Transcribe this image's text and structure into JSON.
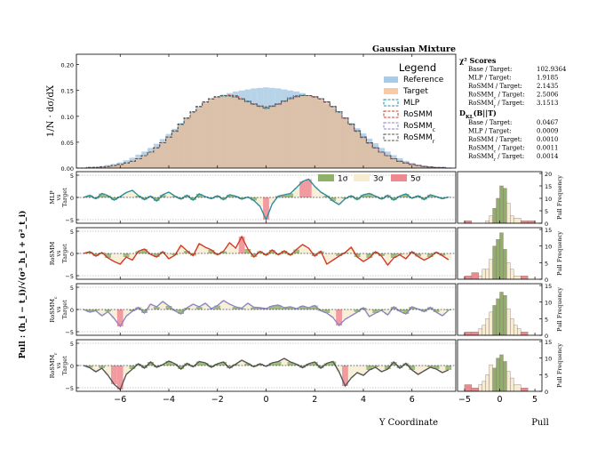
{
  "chart_data": {
    "type": "bar",
    "title": "Gaussian Mixture",
    "xlabel": "Y Coordinate",
    "ylabel_main": "1/N · dσ/dX",
    "pull_ylabel": "Pull : (h_i − t_i)/√(σ²_h_i + σ²_t_i)",
    "pull_hist_xlabel": "Pull",
    "pull_hist_ylabel": "Pull Frequency",
    "xlim": [
      -7.8,
      7.8
    ],
    "ylim_main": [
      0,
      0.22
    ],
    "x_ticks": [
      "−6",
      "−4",
      "−2",
      "0",
      "2",
      "4",
      "6"
    ],
    "y_ticks_main": [
      "0.00",
      "0.05",
      "0.10",
      "0.15",
      "0.20"
    ],
    "y_ticks_pull": [
      "−5",
      "0",
      "5"
    ],
    "pull_hist_xticks": [
      "−5",
      "0",
      "5"
    ],
    "legend": {
      "title": "Legend",
      "entries": [
        {
          "label": "Reference",
          "style": "filled",
          "color": "#aacbe3"
        },
        {
          "label": "Target",
          "style": "filled",
          "color": "#f7c9a6"
        },
        {
          "label": "MLP",
          "style": "dashed",
          "color": "#2a8fa0"
        },
        {
          "label": "RoSMM",
          "style": "dashed",
          "color": "#d23a2a"
        },
        {
          "label": "RoSMM",
          "sub": "c",
          "style": "dashed",
          "color": "#8e86c4"
        },
        {
          "label": "RoSMM",
          "sub": "r",
          "style": "dashed",
          "color": "#555555"
        }
      ]
    },
    "sigma_legend": [
      "1σ",
      "3σ",
      "5σ"
    ],
    "bands": {
      "one": "#8fb069",
      "three": "#f6ecd0",
      "five": "#ee8a8f"
    },
    "x_centers": [
      -7.5,
      -7.25,
      -7.0,
      -6.75,
      -6.5,
      -6.25,
      -6.0,
      -5.75,
      -5.5,
      -5.25,
      -5.0,
      -4.75,
      -4.5,
      -4.25,
      -4.0,
      -3.75,
      -3.5,
      -3.25,
      -3.0,
      -2.75,
      -2.5,
      -2.25,
      -2.0,
      -1.75,
      -1.5,
      -1.25,
      -1.0,
      -0.75,
      -0.5,
      -0.25,
      0.0,
      0.25,
      0.5,
      0.75,
      1.0,
      1.25,
      1.5,
      1.75,
      2.0,
      2.25,
      2.5,
      2.75,
      3.0,
      3.25,
      3.5,
      3.75,
      4.0,
      4.25,
      4.5,
      4.75,
      5.0,
      5.25,
      5.5,
      5.75,
      6.0,
      6.25,
      6.5,
      6.75,
      7.0,
      7.25,
      7.5
    ],
    "series": [
      {
        "name": "Reference",
        "values": [
          0.001,
          0.002,
          0.003,
          0.004,
          0.006,
          0.008,
          0.011,
          0.015,
          0.02,
          0.026,
          0.032,
          0.039,
          0.047,
          0.056,
          0.066,
          0.076,
          0.087,
          0.097,
          0.107,
          0.116,
          0.125,
          0.131,
          0.137,
          0.142,
          0.145,
          0.148,
          0.15,
          0.152,
          0.154,
          0.155,
          0.156,
          0.155,
          0.154,
          0.152,
          0.15,
          0.148,
          0.145,
          0.141,
          0.137,
          0.131,
          0.124,
          0.116,
          0.107,
          0.097,
          0.087,
          0.077,
          0.067,
          0.057,
          0.048,
          0.039,
          0.032,
          0.025,
          0.019,
          0.014,
          0.01,
          0.007,
          0.005,
          0.003,
          0.002,
          0.001,
          0.001
        ]
      },
      {
        "name": "Target",
        "values": [
          0.0,
          0.001,
          0.001,
          0.002,
          0.003,
          0.005,
          0.007,
          0.01,
          0.013,
          0.018,
          0.024,
          0.031,
          0.039,
          0.049,
          0.06,
          0.072,
          0.085,
          0.097,
          0.109,
          0.119,
          0.128,
          0.134,
          0.138,
          0.14,
          0.14,
          0.138,
          0.134,
          0.129,
          0.124,
          0.12,
          0.118,
          0.12,
          0.124,
          0.129,
          0.134,
          0.138,
          0.14,
          0.14,
          0.138,
          0.134,
          0.128,
          0.119,
          0.109,
          0.097,
          0.085,
          0.072,
          0.06,
          0.049,
          0.039,
          0.031,
          0.024,
          0.018,
          0.013,
          0.01,
          0.007,
          0.005,
          0.003,
          0.002,
          0.001,
          0.001,
          0.0
        ]
      },
      {
        "name": "MLP",
        "values": [
          0.0,
          0.001,
          0.001,
          0.002,
          0.003,
          0.005,
          0.007,
          0.01,
          0.013,
          0.018,
          0.024,
          0.031,
          0.039,
          0.049,
          0.06,
          0.071,
          0.084,
          0.096,
          0.108,
          0.118,
          0.127,
          0.133,
          0.137,
          0.139,
          0.139,
          0.137,
          0.133,
          0.128,
          0.123,
          0.119,
          0.115,
          0.119,
          0.123,
          0.13,
          0.136,
          0.14,
          0.141,
          0.14,
          0.137,
          0.133,
          0.127,
          0.118,
          0.108,
          0.096,
          0.084,
          0.071,
          0.059,
          0.048,
          0.039,
          0.031,
          0.024,
          0.018,
          0.013,
          0.01,
          0.007,
          0.005,
          0.003,
          0.002,
          0.001,
          0.001,
          0.0
        ]
      },
      {
        "name": "RoSMM",
        "values": [
          0.0,
          0.001,
          0.001,
          0.002,
          0.003,
          0.005,
          0.007,
          0.01,
          0.013,
          0.018,
          0.024,
          0.031,
          0.039,
          0.049,
          0.06,
          0.072,
          0.085,
          0.097,
          0.109,
          0.119,
          0.128,
          0.134,
          0.138,
          0.14,
          0.141,
          0.14,
          0.134,
          0.129,
          0.124,
          0.12,
          0.116,
          0.12,
          0.124,
          0.129,
          0.134,
          0.138,
          0.14,
          0.14,
          0.138,
          0.134,
          0.128,
          0.119,
          0.109,
          0.097,
          0.085,
          0.072,
          0.06,
          0.049,
          0.039,
          0.031,
          0.024,
          0.018,
          0.013,
          0.01,
          0.007,
          0.005,
          0.003,
          0.002,
          0.001,
          0.001,
          0.0
        ]
      },
      {
        "name": "RoSMMc",
        "values": [
          0.0,
          0.001,
          0.001,
          0.002,
          0.003,
          0.005,
          0.007,
          0.01,
          0.013,
          0.018,
          0.024,
          0.031,
          0.039,
          0.049,
          0.06,
          0.072,
          0.085,
          0.097,
          0.109,
          0.119,
          0.128,
          0.134,
          0.138,
          0.14,
          0.14,
          0.138,
          0.134,
          0.129,
          0.124,
          0.12,
          0.117,
          0.12,
          0.124,
          0.129,
          0.134,
          0.138,
          0.14,
          0.14,
          0.138,
          0.134,
          0.128,
          0.119,
          0.109,
          0.097,
          0.085,
          0.072,
          0.06,
          0.049,
          0.039,
          0.031,
          0.024,
          0.018,
          0.013,
          0.01,
          0.007,
          0.005,
          0.003,
          0.002,
          0.001,
          0.001,
          0.0
        ]
      },
      {
        "name": "RoSMMr",
        "values": [
          0.0,
          0.001,
          0.001,
          0.002,
          0.003,
          0.005,
          0.007,
          0.01,
          0.013,
          0.018,
          0.024,
          0.031,
          0.039,
          0.049,
          0.06,
          0.072,
          0.085,
          0.097,
          0.109,
          0.119,
          0.128,
          0.134,
          0.138,
          0.14,
          0.14,
          0.138,
          0.134,
          0.129,
          0.124,
          0.12,
          0.118,
          0.12,
          0.124,
          0.129,
          0.134,
          0.138,
          0.14,
          0.14,
          0.138,
          0.134,
          0.128,
          0.119,
          0.109,
          0.097,
          0.085,
          0.072,
          0.06,
          0.049,
          0.039,
          0.031,
          0.024,
          0.018,
          0.013,
          0.01,
          0.007,
          0.005,
          0.003,
          0.002,
          0.001,
          0.001,
          0.0
        ]
      }
    ],
    "pull_panels": [
      {
        "model": "MLP",
        "label_lines": [
          "MLP",
          "vs",
          "Target"
        ],
        "label_sub": "",
        "color": "#2a8fa0",
        "pulls": [
          0.0,
          0.5,
          -0.3,
          0.9,
          0.4,
          -0.6,
          0.2,
          1.1,
          1.6,
          0.4,
          -0.5,
          0.3,
          -0.8,
          0.6,
          1.2,
          0.3,
          -0.4,
          0.5,
          -0.6,
          0.8,
          0.2,
          -0.3,
          0.4,
          -0.5,
          0.6,
          0.3,
          -0.4,
          0.1,
          -0.7,
          -2.0,
          -5.0,
          -1.5,
          0.3,
          0.6,
          0.9,
          2.2,
          3.6,
          4.1,
          2.5,
          1.2,
          0.4,
          -0.8,
          -1.6,
          -0.3,
          0.4,
          -0.5,
          0.6,
          0.9,
          0.3,
          -0.4,
          0.5,
          -0.6,
          0.3,
          0.8,
          -0.2,
          0.4,
          -0.5,
          0.6,
          0.2,
          -0.3,
          0.1
        ],
        "hist": {
          "bins": [
            -5,
            -4,
            -3,
            -2,
            -1.5,
            -1,
            -0.5,
            0,
            0.5,
            1,
            1.5,
            2,
            3,
            4
          ],
          "counts": [
            1,
            0,
            0,
            1,
            3,
            6,
            10,
            15,
            14,
            8,
            3,
            2,
            1,
            1
          ]
        }
      },
      {
        "model": "RoSMM",
        "label_lines": [
          "RoSMM",
          "vs",
          "Target"
        ],
        "label_sub": "",
        "color": "#d23a2a",
        "pulls": [
          0.0,
          0.4,
          -0.6,
          0.2,
          -1.0,
          -1.8,
          -2.4,
          -0.8,
          -1.5,
          0.5,
          1.0,
          -0.2,
          -0.8,
          0.4,
          -1.2,
          -0.4,
          1.8,
          0.6,
          -0.5,
          2.2,
          1.4,
          0.8,
          -0.3,
          0.5,
          2.4,
          1.2,
          3.8,
          1.0,
          -0.8,
          0.5,
          -0.4,
          0.8,
          -0.3,
          0.6,
          -0.4,
          0.9,
          2.0,
          1.2,
          -0.6,
          0.5,
          -2.4,
          -1.5,
          -0.6,
          0.2,
          1.4,
          -0.8,
          -1.8,
          -1.0,
          0.4,
          -0.6,
          -2.6,
          -1.0,
          -0.3,
          -1.2,
          0.4,
          -0.7,
          -1.5,
          -0.8,
          0.3,
          -0.5,
          -1.4
        ],
        "hist": {
          "bins": [
            -5,
            -4,
            -3,
            -2.5,
            -2,
            -1.5,
            -1,
            -0.5,
            0,
            0.5,
            1,
            1.5,
            2,
            3
          ],
          "counts": [
            1,
            2,
            1,
            3,
            3,
            6,
            10,
            12,
            14,
            9,
            5,
            3,
            1,
            1
          ]
        }
      },
      {
        "model": "RoSMM",
        "label_lines": [
          "RoSMM",
          "vs",
          "Target"
        ],
        "label_sub": "c",
        "color": "#8e86c4",
        "pulls": [
          0.0,
          -0.6,
          -0.3,
          -1.4,
          -0.5,
          -2.0,
          -3.8,
          -1.5,
          -0.4,
          0.5,
          -0.8,
          1.2,
          0.6,
          1.8,
          0.8,
          -0.3,
          -1.0,
          0.4,
          1.2,
          0.6,
          1.4,
          0.2,
          0.9,
          2.0,
          1.2,
          0.6,
          0.3,
          1.4,
          0.5,
          0.4,
          0.2,
          0.8,
          1.0,
          0.4,
          0.6,
          0.2,
          0.8,
          0.4,
          0.9,
          -0.3,
          -0.8,
          -1.8,
          -3.6,
          -2.2,
          -1.4,
          -0.6,
          0.4,
          -1.6,
          -0.8,
          -0.2,
          -1.2,
          0.6,
          -0.4,
          -1.0,
          0.6,
          0.1,
          -0.5,
          0.5,
          -0.6,
          -1.4,
          -0.2
        ],
        "hist": {
          "bins": [
            -5,
            -4,
            -3,
            -2.5,
            -2,
            -1.5,
            -1,
            -0.5,
            0,
            0.5,
            1,
            1.5,
            2,
            2.5,
            3
          ],
          "counts": [
            1,
            1,
            2,
            3,
            5,
            7,
            9,
            11,
            13,
            12,
            8,
            5,
            3,
            2,
            1
          ]
        }
      },
      {
        "model": "RoSMM",
        "label_lines": [
          "RoSMM",
          "vs",
          "Target"
        ],
        "label_sub": "r",
        "color": "#555555",
        "pulls": [
          0.0,
          -0.5,
          -1.4,
          -0.6,
          -2.2,
          -4.2,
          -5.4,
          -2.0,
          -0.8,
          0.4,
          -0.6,
          0.8,
          -0.4,
          0.2,
          1.0,
          0.4,
          -0.8,
          0.5,
          -0.3,
          0.9,
          0.6,
          -0.4,
          0.4,
          0.8,
          -0.6,
          0.3,
          1.2,
          0.5,
          -0.3,
          0.4,
          -0.2,
          0.6,
          0.9,
          1.6,
          0.8,
          0.3,
          -0.5,
          0.4,
          0.8,
          -0.6,
          0.5,
          0.9,
          -1.4,
          -4.6,
          -2.8,
          -1.6,
          -2.2,
          -1.0,
          -0.4,
          -1.4,
          -0.8,
          0.8,
          -0.6,
          0.5,
          -1.0,
          -2.0,
          -1.2,
          -0.4,
          -0.8,
          -1.6,
          -1.0
        ],
        "hist": {
          "bins": [
            -5,
            -4,
            -3,
            -2.5,
            -2,
            -1.5,
            -1,
            -0.5,
            0,
            0.5,
            1,
            1.5,
            2,
            3
          ],
          "counts": [
            2,
            1,
            2,
            3,
            5,
            8,
            7,
            10,
            11,
            9,
            6,
            4,
            2,
            1
          ]
        }
      }
    ]
  },
  "info": {
    "chi2_title": "χ² Scores",
    "chi2": [
      {
        "label": "Base / Target:",
        "value": "102.9364"
      },
      {
        "label": "MLP / Target:",
        "value": "1.9185"
      },
      {
        "label": "RoSMM / Target:",
        "value": "2.1435"
      },
      {
        "label": "RoSMM",
        "sub": "c",
        "tail": " / Target:",
        "value": "2.5006"
      },
      {
        "label": "RoSMM",
        "sub": "r",
        "tail": " / Target:",
        "value": "3.1513"
      }
    ],
    "dkl_title": "D",
    "dkl_sub": "KL",
    "dkl_tail": "(B||T)",
    "dkl": [
      {
        "label": "Base / Target:",
        "value": "0.0467"
      },
      {
        "label": "MLP / Target:",
        "value": "0.0009"
      },
      {
        "label": "RoSMM / Target:",
        "value": "0.0010"
      },
      {
        "label": "RoSMM",
        "sub": "c",
        "tail": " / Target:",
        "value": "0.0011"
      },
      {
        "label": "RoSMM",
        "sub": "r",
        "tail": " / Target:",
        "value": "0.0014"
      }
    ]
  }
}
